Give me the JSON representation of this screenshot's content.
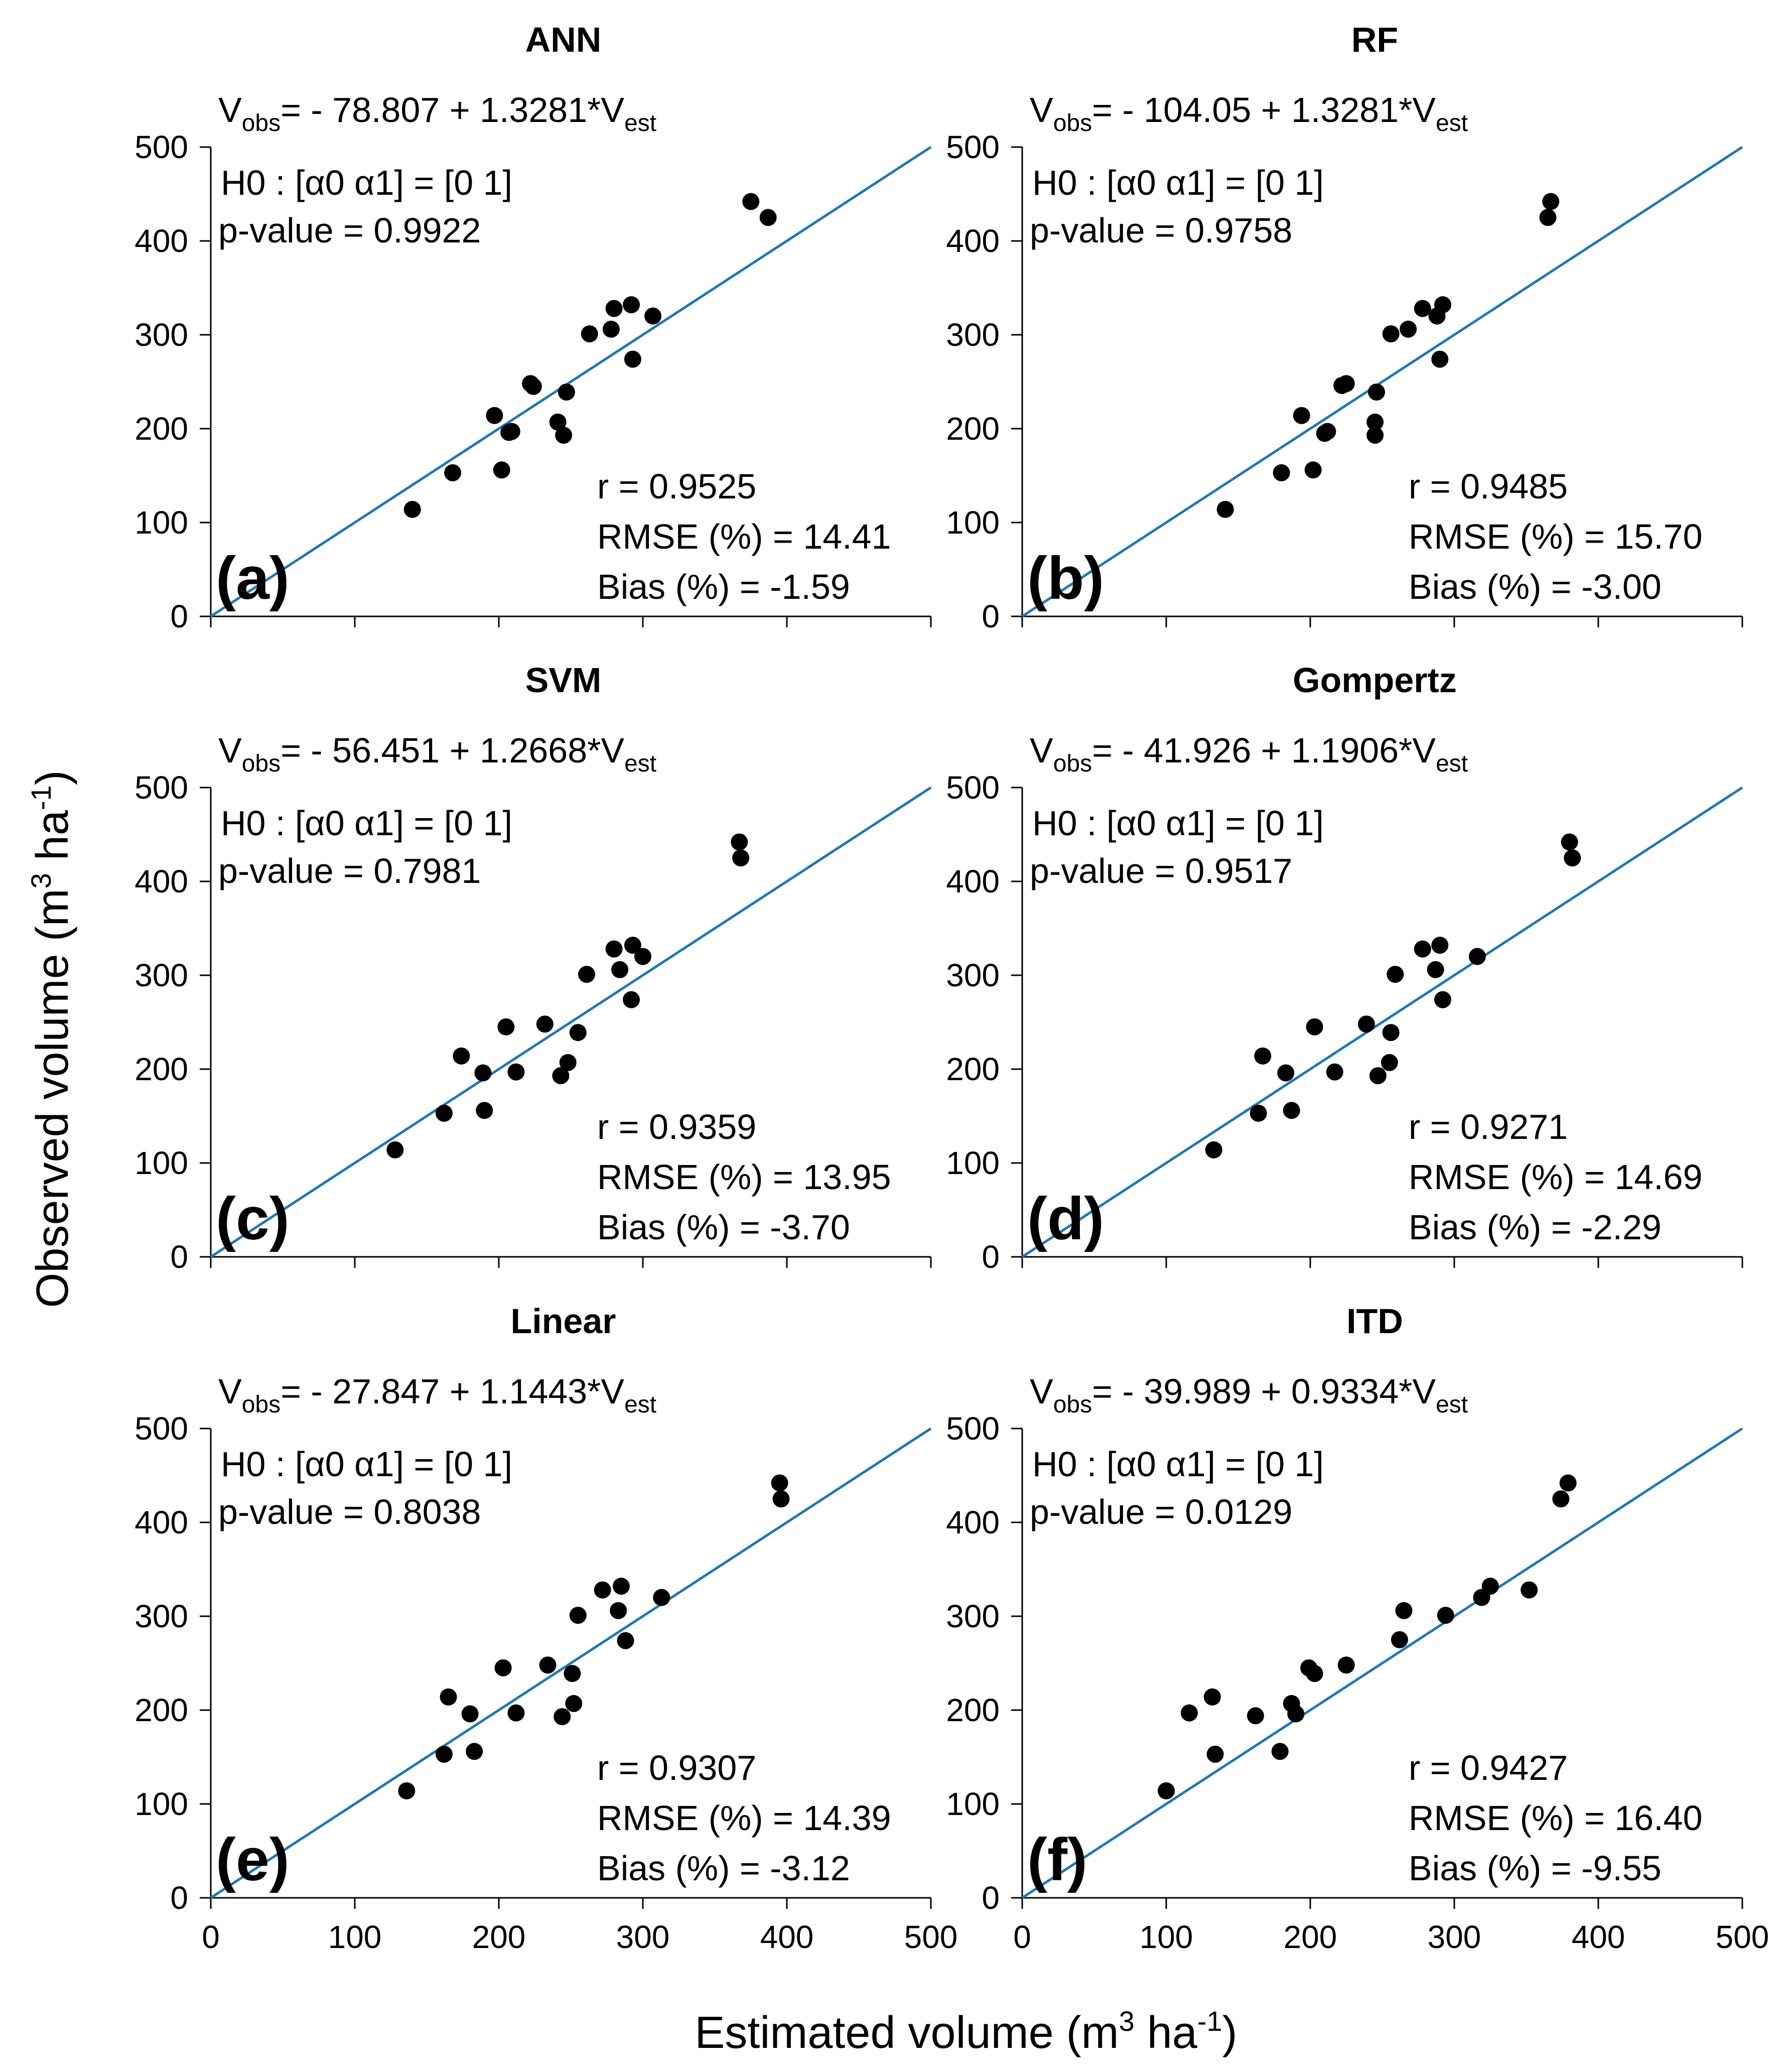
{
  "figure": {
    "ylabel": {
      "main": "Observed volume (m",
      "sup1": "3",
      "mid": " ha",
      "sup2": "-1",
      "end": ")"
    },
    "xlabel": {
      "main": "Estimated volume (m",
      "sup1": "3",
      "mid": " ha",
      "sup2": "-1",
      "end": ")"
    },
    "colors": {
      "fit_line": "#1f77b4",
      "points": "#000000",
      "axis": "#000000"
    }
  },
  "chart_data": [
    {
      "type": "scatter",
      "title": "ANN",
      "panel_label": "(a)",
      "equation": {
        "lhs_main": "V",
        "lhs_sub": "obs",
        "rhs_main": "= - 78.807 + 1.3281*V",
        "rhs_sub": "est"
      },
      "hypothesis": "H0 : [α0  α1] = [0  1]",
      "p_value": "p-value = 0.9922",
      "stats": {
        "r": "r = 0.9525",
        "rmse": "RMSE (%) = 14.41",
        "bias": "Bias (%) = -1.59"
      },
      "xlim": [
        0,
        500
      ],
      "ylim": [
        0,
        500
      ],
      "xticks": [
        0,
        100,
        200,
        300,
        400,
        500
      ],
      "yticks": [
        0,
        100,
        200,
        300,
        400,
        500
      ],
      "line": {
        "x": [
          0,
          500
        ],
        "y": [
          0,
          500
        ]
      },
      "points": {
        "x": [
          140,
          168,
          197,
          202,
          207,
          209,
          222,
          224,
          241,
          245,
          247,
          263,
          278,
          280,
          292,
          293,
          307,
          375,
          387
        ],
        "y": [
          114,
          153,
          214,
          156,
          196,
          197,
          248,
          245,
          207,
          193,
          239,
          301,
          306,
          328,
          332,
          274,
          320,
          442,
          425
        ]
      }
    },
    {
      "type": "scatter",
      "title": "RF",
      "panel_label": "(b)",
      "equation": {
        "lhs_main": "V",
        "lhs_sub": "obs",
        "rhs_main": "= - 104.05 + 1.3281*V",
        "rhs_sub": "est"
      },
      "hypothesis": "H0 : [α0  α1] = [0  1]",
      "p_value": "p-value =  0.9758",
      "stats": {
        "r": "r = 0.9485",
        "rmse": "RMSE (%) = 15.70",
        "bias": "Bias (%) = -3.00"
      },
      "xlim": [
        0,
        500
      ],
      "ylim": [
        0,
        500
      ],
      "xticks": [
        0,
        100,
        200,
        300,
        400,
        500
      ],
      "yticks": [
        0,
        100,
        200,
        300,
        400,
        500
      ],
      "line": {
        "x": [
          0,
          500
        ],
        "y": [
          0,
          500
        ]
      },
      "points": {
        "x": [
          141,
          180,
          194,
          202,
          210,
          212,
          222,
          225,
          245,
          245,
          246,
          256,
          268,
          278,
          288,
          290,
          292,
          365,
          367
        ],
        "y": [
          114,
          153,
          214,
          156,
          195,
          197,
          246,
          248,
          207,
          193,
          239,
          301,
          306,
          328,
          320,
          274,
          332,
          425,
          442
        ]
      }
    },
    {
      "type": "scatter",
      "title": "SVM",
      "panel_label": "(c)",
      "equation": {
        "lhs_main": "V",
        "lhs_sub": "obs",
        "rhs_main": "= - 56.451 + 1.2668*V",
        "rhs_sub": "est"
      },
      "hypothesis": "H0 : [α0  α1] = [0  1]",
      "p_value": "p-value =  0.7981",
      "stats": {
        "r": "r = 0.9359",
        "rmse": "RMSE (%) = 13.95",
        "bias": "Bias (%) = -3.70"
      },
      "xlim": [
        0,
        500
      ],
      "ylim": [
        0,
        500
      ],
      "xticks": [
        0,
        100,
        200,
        300,
        400,
        500
      ],
      "yticks": [
        0,
        100,
        200,
        300,
        400,
        500
      ],
      "line": {
        "x": [
          0,
          500
        ],
        "y": [
          0,
          500
        ]
      },
      "points": {
        "x": [
          128,
          162,
          174,
          189,
          190,
          205,
          212,
          232,
          243,
          248,
          255,
          261,
          280,
          284,
          292,
          293,
          300,
          367,
          368
        ],
        "y": [
          114,
          153,
          214,
          196,
          156,
          245,
          197,
          248,
          193,
          207,
          239,
          301,
          328,
          306,
          274,
          332,
          320,
          442,
          425
        ]
      }
    },
    {
      "type": "scatter",
      "title": "Gompertz",
      "panel_label": "(d)",
      "equation": {
        "lhs_main": "V",
        "lhs_sub": "obs",
        "rhs_main": "= - 41.926 + 1.1906*V",
        "rhs_sub": "est"
      },
      "hypothesis": "H0 : [α0  α1] = [0  1]",
      "p_value": "p-value = 0.9517",
      "stats": {
        "r": "r = 0.9271",
        "rmse": "RMSE (%) = 14.69",
        "bias": "Bias (%) = -2.29"
      },
      "xlim": [
        0,
        500
      ],
      "ylim": [
        0,
        500
      ],
      "xticks": [
        0,
        100,
        200,
        300,
        400,
        500
      ],
      "yticks": [
        0,
        100,
        200,
        300,
        400,
        500
      ],
      "line": {
        "x": [
          0,
          500
        ],
        "y": [
          0,
          500
        ]
      },
      "points": {
        "x": [
          133,
          164,
          167,
          183,
          187,
          203,
          217,
          239,
          247,
          255,
          256,
          259,
          278,
          287,
          290,
          292,
          316,
          380,
          382
        ],
        "y": [
          114,
          153,
          214,
          196,
          156,
          245,
          197,
          248,
          193,
          207,
          239,
          301,
          328,
          306,
          332,
          274,
          320,
          442,
          425
        ]
      }
    },
    {
      "type": "scatter",
      "title": "Linear",
      "panel_label": "(e)",
      "equation": {
        "lhs_main": "V",
        "lhs_sub": "obs",
        "rhs_main": "= - 27.847 + 1.1443*V",
        "rhs_sub": "est"
      },
      "hypothesis": "H0 : [α0  α1] = [0  1]",
      "p_value": "p-value =  0.8038",
      "stats": {
        "r": "r = 0.9307",
        "rmse": "RMSE (%) = 14.39",
        "bias": "Bias (%) = -3.12"
      },
      "xlim": [
        0,
        500
      ],
      "ylim": [
        0,
        500
      ],
      "xticks": [
        0,
        100,
        200,
        300,
        400,
        500
      ],
      "yticks": [
        0,
        100,
        200,
        300,
        400,
        500
      ],
      "line": {
        "x": [
          0,
          500
        ],
        "y": [
          0,
          500
        ]
      },
      "points": {
        "x": [
          136,
          162,
          165,
          180,
          183,
          203,
          212,
          234,
          244,
          252,
          251,
          255,
          272,
          283,
          285,
          288,
          313,
          395,
          396
        ],
        "y": [
          114,
          153,
          214,
          196,
          156,
          245,
          197,
          248,
          193,
          207,
          239,
          301,
          328,
          306,
          332,
          274,
          320,
          442,
          425
        ]
      }
    },
    {
      "type": "scatter",
      "title": "ITD",
      "panel_label": "(f)",
      "equation": {
        "lhs_main": "V",
        "lhs_sub": "obs",
        "rhs_main": "= - 39.989 + 0.9334*V",
        "rhs_sub": "est"
      },
      "hypothesis": "H0 : [α0  α1] = [0  1]",
      "p_value": "p-value =  0.0129",
      "stats": {
        "r": "r = 0.9427",
        "rmse": "RMSE (%) = 16.40",
        "bias": "Bias (%) = -9.55"
      },
      "xlim": [
        0,
        500
      ],
      "ylim": [
        0,
        500
      ],
      "xticks": [
        0,
        100,
        200,
        300,
        400,
        500
      ],
      "yticks": [
        0,
        100,
        200,
        300,
        400,
        500
      ],
      "line": {
        "x": [
          0,
          500
        ],
        "y": [
          0,
          500
        ]
      },
      "points": {
        "x": [
          100,
          116,
          132,
          134,
          162,
          179,
          187,
          190,
          199,
          203,
          225,
          262,
          265,
          294,
          319,
          325,
          352,
          374,
          379
        ],
        "y": [
          114,
          197,
          214,
          153,
          194,
          156,
          207,
          196,
          245,
          239,
          248,
          275,
          306,
          301,
          320,
          332,
          328,
          425,
          442
        ]
      }
    }
  ]
}
